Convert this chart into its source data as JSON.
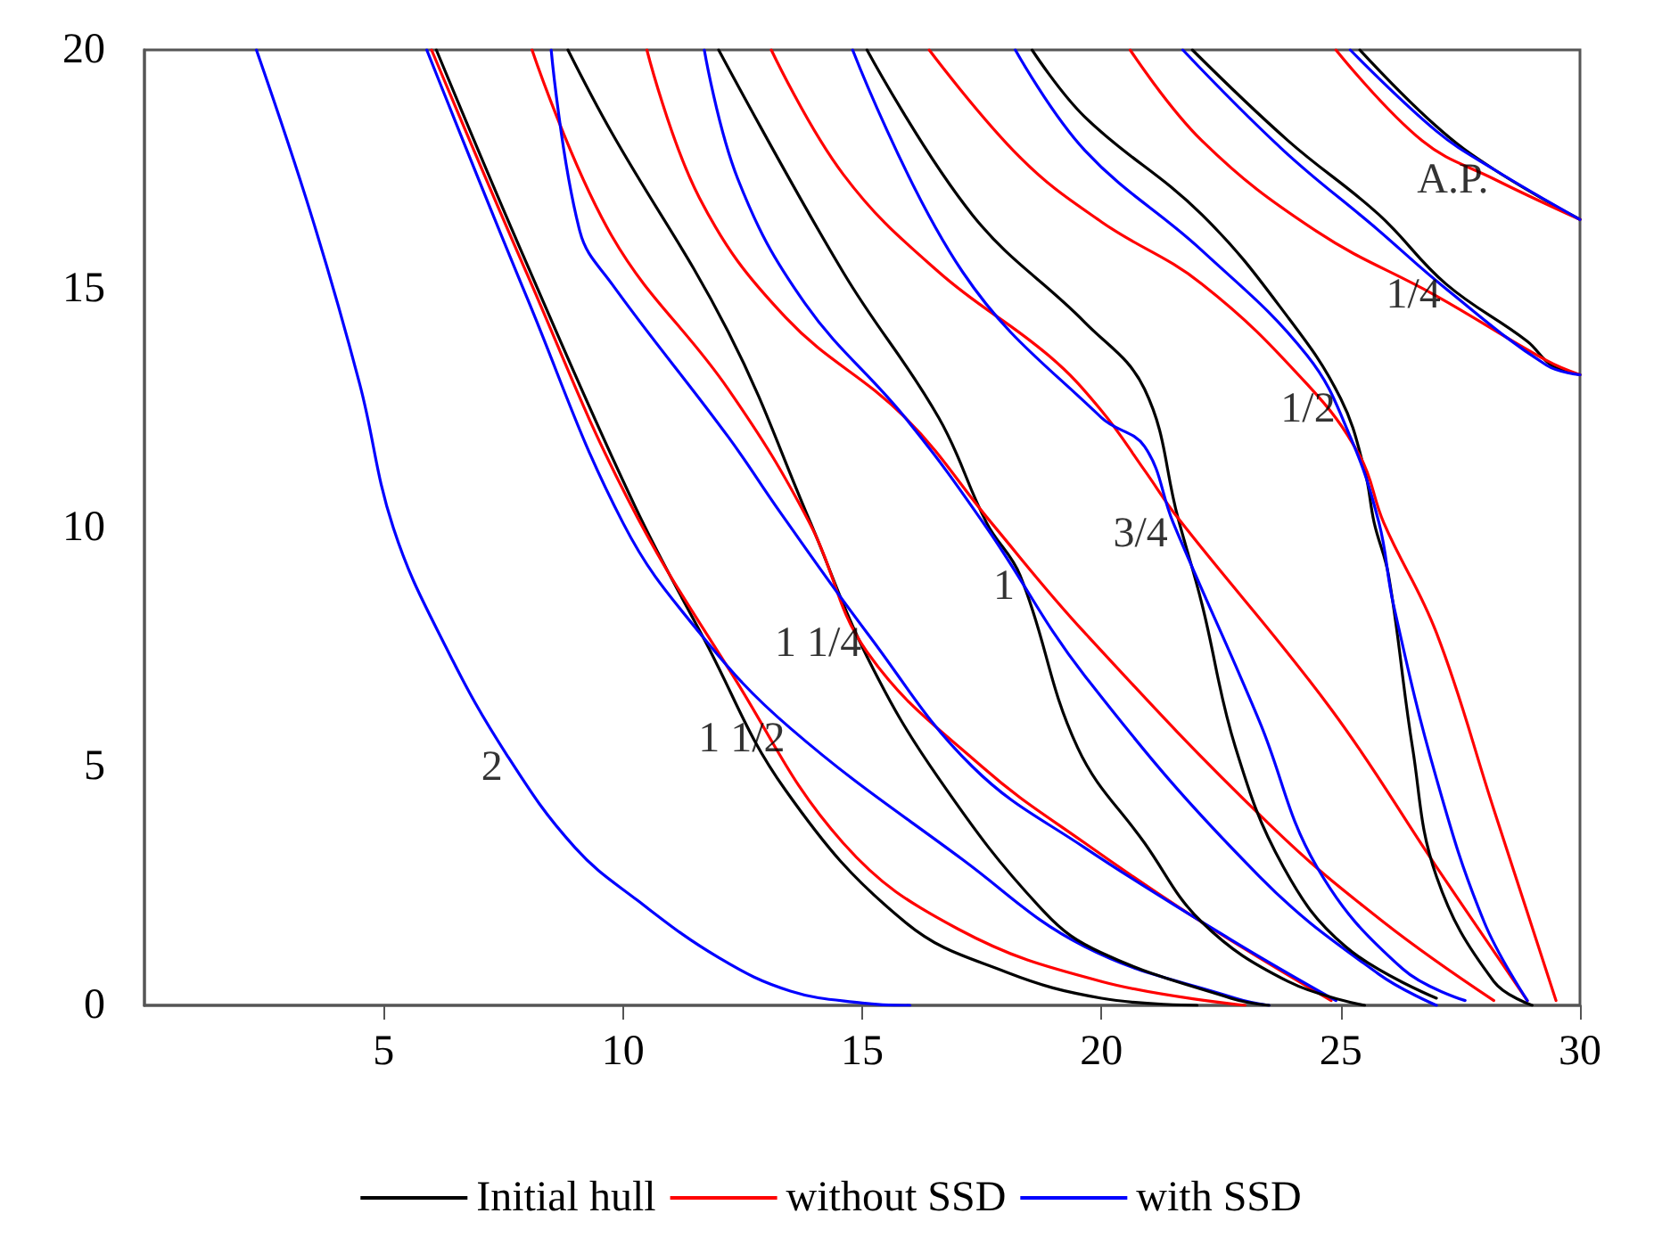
{
  "chart_data": {
    "type": "line",
    "xlim": [
      0,
      30
    ],
    "xticks": [
      5,
      10,
      15,
      20,
      25,
      30
    ],
    "ylim": [
      0,
      20
    ],
    "yticks": [
      0,
      5,
      10,
      15,
      20
    ],
    "grid": false,
    "legend": "bottom",
    "marker": "none",
    "line_style": "solid",
    "series": [
      {
        "name": "Initial hull",
        "color": "#000000",
        "x": [
          6.1,
          8.0,
          10.25,
          11.7,
          13.4,
          15.9,
          18.0,
          20.0,
          22.0
        ],
        "values": [
          20,
          15.5,
          10.45,
          7.66,
          4.5,
          1.74,
          0.7,
          0.15,
          0
        ]
      },
      {
        "name": "without SSD",
        "color": "#ff0000",
        "x": [
          6.0,
          8.0,
          10.1,
          12.3,
          14.6,
          17.0,
          20.0,
          23.0
        ],
        "values": [
          20,
          15.3,
          10.6,
          6.9,
          3.4,
          1.6,
          0.5,
          0
        ]
      },
      {
        "name": "with SSD",
        "color": "#0000ff",
        "x": [
          5.9,
          8.0,
          10.0,
          11.6,
          13.5,
          17.1,
          19.65,
          22.8,
          23.5
        ],
        "values": [
          20,
          14.8,
          10.1,
          7.8,
          5.8,
          3.05,
          1.23,
          0.15,
          0
        ]
      },
      {
        "color": "#0000ff",
        "x": [
          2.34,
          3.5,
          4.5,
          5.2,
          6.3,
          7.6,
          9.0,
          10.3,
          12.0,
          13.5,
          15.0,
          16.0
        ],
        "values": [
          20,
          16.5,
          13,
          10,
          7.5,
          5.2,
          3.3,
          2.2,
          1.0,
          0.3,
          0.05,
          0
        ]
      },
      {
        "color": "#000000",
        "x": [
          8.85,
          9.77,
          12.2,
          13.9,
          15.1,
          16.6,
          18.8,
          20.0,
          22.7,
          23.5
        ],
        "values": [
          20,
          18.26,
          14.1,
          10.15,
          7.3,
          4.75,
          1.96,
          1.1,
          0.15,
          0
        ]
      },
      {
        "color": "#ff0000",
        "x": [
          8.1,
          9.77,
          12.2,
          13.9,
          15.1,
          17.5,
          19.65,
          22.1,
          24.8
        ],
        "values": [
          20,
          16.1,
          12.9,
          10.1,
          7.4,
          5.0,
          3.4,
          1.74,
          0.1
        ]
      },
      {
        "color": "#0000ff",
        "x": [
          8.5,
          9.1,
          9.77,
          12.2,
          13.3,
          15.1,
          17.3,
          19.65,
          22.7,
          24.9
        ],
        "values": [
          20,
          16.2,
          15.1,
          11.9,
          10.3,
          7.8,
          5.0,
          3.3,
          1.38,
          0.1
        ]
      },
      {
        "color": "#000000",
        "x": [
          12.0,
          14.6,
          16.6,
          17.6,
          18.3,
          19.5,
          20.9,
          22.1,
          23.9,
          25.5
        ],
        "values": [
          20,
          15.35,
          12.3,
          10.1,
          9.0,
          5.4,
          3.4,
          1.74,
          0.5,
          0
        ]
      },
      {
        "color": "#ff0000",
        "x": [
          10.5,
          11.6,
          13.4,
          15.9,
          17.7,
          19.65,
          23.5,
          25.9,
          28.2
        ],
        "values": [
          20,
          16.9,
          14.4,
          12.3,
          10.1,
          7.8,
          3.8,
          1.74,
          0.1
        ]
      },
      {
        "color": "#0000ff",
        "x": [
          11.7,
          12.4,
          13.8,
          15.9,
          17.6,
          19.65,
          23.3,
          25.8,
          27.0
        ],
        "values": [
          20,
          17.3,
          14.7,
          12.3,
          10.0,
          6.9,
          2.7,
          0.65,
          0
        ]
      },
      {
        "color": "#000000",
        "x": [
          15.1,
          17.3,
          19.65,
          20.9,
          21.6,
          22.1,
          22.8,
          23.8,
          25.1,
          27.0
        ],
        "values": [
          20,
          16.55,
          14.3,
          12.9,
          10.2,
          8.4,
          5.4,
          2.9,
          1.23,
          0.15
        ]
      },
      {
        "color": "#ff0000",
        "x": [
          13.1,
          14.6,
          16.6,
          18.9,
          20.0,
          20.9,
          21.6,
          24.8,
          27.0,
          28.9
        ],
        "values": [
          20,
          17.4,
          15.35,
          13.6,
          12.45,
          11.2,
          10.2,
          6.2,
          2.9,
          0.1
        ]
      },
      {
        "color": "#0000ff",
        "x": [
          14.8,
          17.1,
          20.0,
          20.9,
          21.5,
          23.3,
          24.5,
          26.3,
          27.6
        ],
        "values": [
          20,
          15.35,
          12.3,
          11.7,
          10.1,
          5.95,
          2.9,
          0.76,
          0.1
        ]
      },
      {
        "color": "#000000",
        "x": [
          18.55,
          19.65,
          22.1,
          23.9,
          25.0,
          25.5,
          25.7,
          26.0,
          26.5,
          27.0,
          28.2,
          29.0
        ],
        "values": [
          20,
          18.6,
          16.55,
          14.4,
          12.7,
          11.2,
          10.1,
          9.0,
          5.4,
          2.7,
          0.5,
          0
        ]
      },
      {
        "color": "#ff0000",
        "x": [
          16.4,
          18.3,
          20.0,
          22.1,
          24.3,
          25.4,
          25.9,
          27.0,
          28.2,
          29.5
        ],
        "values": [
          20,
          17.75,
          16.4,
          15.1,
          13.0,
          11.5,
          10.1,
          7.8,
          4.1,
          0.1
        ]
      },
      {
        "color": "#0000ff",
        "x": [
          18.2,
          19.65,
          22.1,
          24.3,
          25.2,
          25.8,
          26.1,
          27.0,
          28.0,
          28.9
        ],
        "values": [
          20,
          17.9,
          15.8,
          13.6,
          11.9,
          10.1,
          8.4,
          4.75,
          1.74,
          0.1
        ]
      },
      {
        "color": "#000000",
        "x": [
          21.9,
          23.9,
          25.8,
          27.2,
          28.9,
          29.4,
          30.0
        ],
        "values": [
          20,
          18.1,
          16.55,
          15.1,
          13.9,
          13.4,
          13.2
        ]
      },
      {
        "color": "#ff0000",
        "x": [
          20.6,
          22.1,
          24.5,
          27.0,
          29.3,
          30.0
        ],
        "values": [
          20,
          18.1,
          16.2,
          14.85,
          13.5,
          13.2
        ]
      },
      {
        "color": "#0000ff",
        "x": [
          21.7,
          23.8,
          25.7,
          27.2,
          29.3,
          30.0
        ],
        "values": [
          20,
          17.9,
          16.3,
          15.0,
          13.4,
          13.2
        ]
      },
      {
        "color": "#000000",
        "x": [
          25.4,
          27.0,
          28.2,
          30.0
        ],
        "values": [
          20,
          18.4,
          17.5,
          16.45
        ]
      },
      {
        "color": "#ff0000",
        "x": [
          24.9,
          26.7,
          28.2,
          30.0
        ],
        "values": [
          20,
          18.1,
          17.3,
          16.45
        ]
      },
      {
        "color": "#0000ff",
        "x": [
          25.2,
          27.0,
          28.2,
          30.0
        ],
        "values": [
          20,
          18.3,
          17.5,
          16.45
        ]
      }
    ],
    "annotations": [
      {
        "text": "2",
        "x": 7.6,
        "y": 5.2
      },
      {
        "text": "1 1/2",
        "x": 13.5,
        "y": 5.8
      },
      {
        "text": "1 1/4",
        "x": 15.1,
        "y": 7.8
      },
      {
        "text": "1",
        "x": 18.3,
        "y": 9.0
      },
      {
        "text": "3/4",
        "x": 21.5,
        "y": 10.1
      },
      {
        "text": "1/2",
        "x": 25.0,
        "y": 12.7
      },
      {
        "text": "1/4",
        "x": 27.2,
        "y": 15.1
      },
      {
        "text": "A.P.",
        "x": 28.2,
        "y": 17.5
      }
    ]
  }
}
